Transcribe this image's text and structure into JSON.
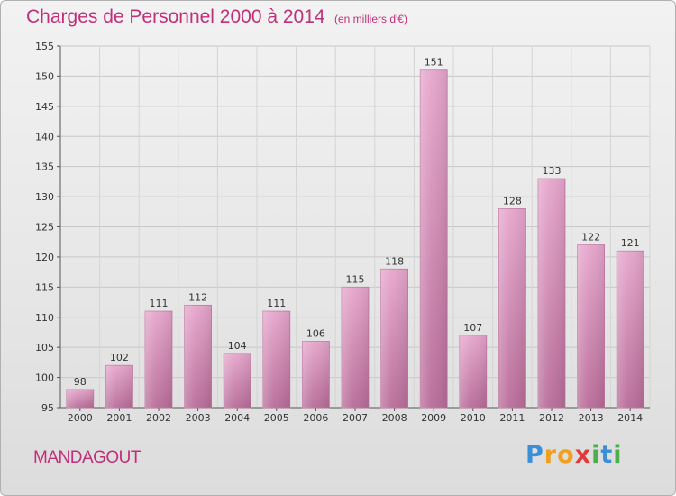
{
  "header": {
    "title": "Charges de Personnel 2000 à 2014",
    "subtitle": "(en milliers d'€)"
  },
  "place_name": "MANDAGOUT",
  "logo": {
    "letters": [
      {
        "ch": "P",
        "color": "#3a8fd8"
      },
      {
        "ch": "r",
        "color": "#f0a020"
      },
      {
        "ch": "o",
        "color": "#f0a020"
      },
      {
        "ch": "x",
        "color": "#e03a3a"
      },
      {
        "ch": "i",
        "color": "#4bb04b"
      },
      {
        "ch": "t",
        "color": "#3a8fd8"
      },
      {
        "ch": "i",
        "color": "#4bb04b"
      }
    ]
  },
  "chart_data": {
    "type": "bar",
    "categories": [
      "2000",
      "2001",
      "2002",
      "2003",
      "2004",
      "2005",
      "2006",
      "2007",
      "2008",
      "2009",
      "2010",
      "2011",
      "2012",
      "2013",
      "2014"
    ],
    "values": [
      98,
      102,
      111,
      112,
      104,
      111,
      106,
      115,
      118,
      151,
      107,
      128,
      133,
      122,
      121
    ],
    "ylim": [
      95,
      155
    ],
    "yticks": [
      95,
      100,
      105,
      110,
      115,
      120,
      125,
      130,
      135,
      140,
      145,
      150,
      155
    ],
    "grid": true,
    "bar_color": "#d48ab4"
  }
}
